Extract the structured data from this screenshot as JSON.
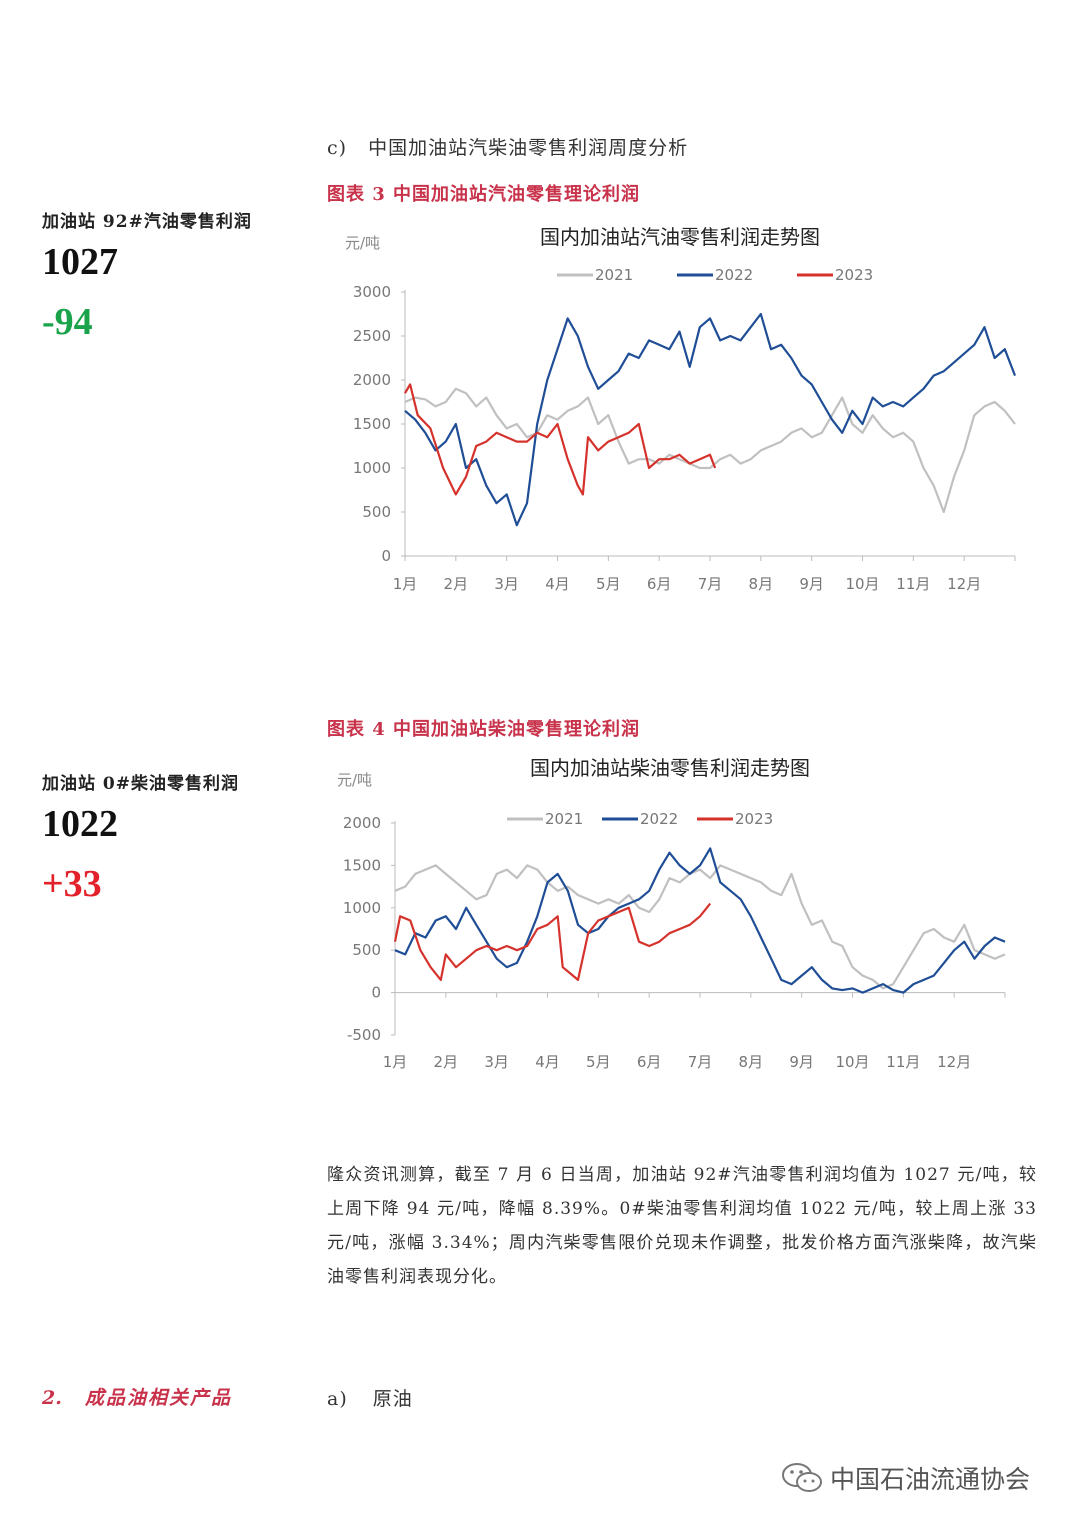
{
  "section_c": {
    "label": "c)",
    "title": "中国加油站汽柴油零售利润周度分析"
  },
  "gasoline": {
    "caption": "图表 3 中国加油站汽油零售理论利润",
    "metric_label": "加油站 92#汽油零售利润",
    "metric_value": "1027",
    "metric_change": "-94",
    "change_color": "#1aa34a"
  },
  "diesel": {
    "caption": "图表 4 中国加油站柴油零售理论利润",
    "metric_label": "加油站 0#柴油零售利润",
    "metric_value": "1022",
    "metric_change": "+33",
    "change_color": "#e3212a"
  },
  "paragraph": "隆众资讯测算，截至 7 月 6 日当周，加油站 92#汽油零售利润均值为 1027 元/吨，较上周下降 94 元/吨，降幅 8.39%。0#柴油零售利润均值 1022 元/吨，较上周上涨 33 元/吨，涨幅 3.34%；周内汽柴零售限价兑现未作调整，批发价格方面汽涨柴降，故汽柴油零售利润表现分化。",
  "section_2": {
    "number": "2.",
    "title": "成品油相关产品",
    "sub_label": "a)",
    "sub_title": "原油"
  },
  "watermark": "中国石油流通协会",
  "chart_data": [
    {
      "type": "line",
      "title": "国内加油站汽油零售利润走势图",
      "ylabel": "元/吨",
      "ylim": [
        0,
        3000
      ],
      "yticks": [
        0,
        500,
        1000,
        1500,
        2000,
        2500,
        3000
      ],
      "months": [
        "1月",
        "2月",
        "3月",
        "4月",
        "5月",
        "6月",
        "7月",
        "8月",
        "9月",
        "10月",
        "11月",
        "12月"
      ],
      "legend_position": "top",
      "grid": false,
      "series": [
        {
          "name": "2021",
          "color": "#c0c0c0",
          "x": [
            0.0,
            0.2,
            0.4,
            0.6,
            0.8,
            1.0,
            1.2,
            1.4,
            1.6,
            1.8,
            2.0,
            2.2,
            2.4,
            2.6,
            2.8,
            3.0,
            3.2,
            3.4,
            3.6,
            3.8,
            4.0,
            4.2,
            4.4,
            4.6,
            4.8,
            5.0,
            5.2,
            5.4,
            5.6,
            5.8,
            6.0,
            6.2,
            6.4,
            6.6,
            6.8,
            7.0,
            7.2,
            7.4,
            7.6,
            7.8,
            8.0,
            8.2,
            8.4,
            8.6,
            8.8,
            9.0,
            9.2,
            9.4,
            9.6,
            9.8,
            10.0,
            10.2,
            10.4,
            10.6,
            10.8,
            11.0,
            11.2,
            11.4,
            11.6,
            11.8,
            12.0
          ],
          "y": [
            1750,
            1800,
            1780,
            1700,
            1750,
            1900,
            1850,
            1700,
            1800,
            1600,
            1450,
            1500,
            1350,
            1400,
            1600,
            1550,
            1650,
            1700,
            1800,
            1500,
            1600,
            1300,
            1050,
            1100,
            1100,
            1050,
            1150,
            1100,
            1050,
            1000,
            1000,
            1100,
            1150,
            1050,
            1100,
            1200,
            1250,
            1300,
            1400,
            1450,
            1350,
            1400,
            1600,
            1800,
            1500,
            1400,
            1600,
            1450,
            1350,
            1400,
            1300,
            1000,
            800,
            500,
            900,
            1200,
            1600,
            1700,
            1750,
            1650,
            1500
          ]
        },
        {
          "name": "2022",
          "color": "#1f4e96",
          "x": [
            0.0,
            0.2,
            0.4,
            0.6,
            0.8,
            1.0,
            1.2,
            1.4,
            1.6,
            1.8,
            2.0,
            2.2,
            2.4,
            2.6,
            2.8,
            3.0,
            3.2,
            3.4,
            3.6,
            3.8,
            4.0,
            4.2,
            4.4,
            4.6,
            4.8,
            5.0,
            5.2,
            5.4,
            5.6,
            5.8,
            6.0,
            6.2,
            6.4,
            6.6,
            6.8,
            7.0,
            7.2,
            7.4,
            7.6,
            7.8,
            8.0,
            8.2,
            8.4,
            8.6,
            8.8,
            9.0,
            9.2,
            9.4,
            9.6,
            9.8,
            10.0,
            10.2,
            10.4,
            10.6,
            10.8,
            11.0,
            11.2,
            11.4,
            11.6,
            11.8,
            12.0
          ],
          "y": [
            1650,
            1550,
            1400,
            1200,
            1300,
            1500,
            1000,
            1100,
            800,
            600,
            700,
            350,
            600,
            1500,
            2000,
            2350,
            2700,
            2500,
            2150,
            1900,
            2000,
            2100,
            2300,
            2250,
            2450,
            2400,
            2350,
            2550,
            2150,
            2600,
            2700,
            2450,
            2500,
            2450,
            2600,
            2750,
            2350,
            2400,
            2250,
            2050,
            1950,
            1750,
            1550,
            1400,
            1650,
            1500,
            1800,
            1700,
            1750,
            1700,
            1800,
            1900,
            2050,
            2100,
            2200,
            2300,
            2400,
            2600,
            2250,
            2350,
            2050
          ]
        },
        {
          "name": "2023",
          "color": "#d6322c",
          "x": [
            0.0,
            0.1,
            0.25,
            0.5,
            0.75,
            1.0,
            1.2,
            1.4,
            1.6,
            1.8,
            2.0,
            2.2,
            2.4,
            2.6,
            2.8,
            3.0,
            3.2,
            3.4,
            3.5,
            3.6,
            3.8,
            4.0,
            4.2,
            4.4,
            4.6,
            4.8,
            5.0,
            5.2,
            5.4,
            5.6,
            5.8,
            6.0,
            6.1
          ],
          "y": [
            1850,
            1950,
            1600,
            1450,
            1000,
            700,
            900,
            1250,
            1300,
            1400,
            1350,
            1300,
            1300,
            1400,
            1350,
            1500,
            1100,
            800,
            700,
            1350,
            1200,
            1300,
            1350,
            1400,
            1500,
            1000,
            1100,
            1100,
            1150,
            1050,
            1100,
            1150,
            1000
          ]
        }
      ]
    },
    {
      "type": "line",
      "title": "国内加油站柴油零售利润走势图",
      "ylabel": "元/吨",
      "ylim": [
        -500,
        2000
      ],
      "yticks": [
        -500,
        0,
        500,
        1000,
        1500,
        2000
      ],
      "months": [
        "1月",
        "2月",
        "3月",
        "4月",
        "5月",
        "6月",
        "7月",
        "8月",
        "9月",
        "10月",
        "11月",
        "12月"
      ],
      "legend_position": "top",
      "grid": false,
      "series": [
        {
          "name": "2021",
          "color": "#c0c0c0",
          "x": [
            0.0,
            0.2,
            0.4,
            0.6,
            0.8,
            1.0,
            1.2,
            1.4,
            1.6,
            1.8,
            2.0,
            2.2,
            2.4,
            2.6,
            2.8,
            3.0,
            3.2,
            3.4,
            3.6,
            3.8,
            4.0,
            4.2,
            4.4,
            4.6,
            4.8,
            5.0,
            5.2,
            5.4,
            5.6,
            5.8,
            6.0,
            6.2,
            6.4,
            6.6,
            6.8,
            7.0,
            7.2,
            7.4,
            7.6,
            7.8,
            8.0,
            8.2,
            8.4,
            8.6,
            8.8,
            9.0,
            9.2,
            9.4,
            9.6,
            9.8,
            10.0,
            10.2,
            10.4,
            10.6,
            10.8,
            11.0,
            11.2,
            11.4,
            11.6,
            11.8,
            12.0
          ],
          "y": [
            1200,
            1250,
            1400,
            1450,
            1500,
            1400,
            1300,
            1200,
            1100,
            1150,
            1400,
            1450,
            1350,
            1500,
            1450,
            1300,
            1200,
            1250,
            1150,
            1100,
            1050,
            1100,
            1050,
            1150,
            1000,
            950,
            1100,
            1350,
            1300,
            1400,
            1450,
            1350,
            1500,
            1450,
            1400,
            1350,
            1300,
            1200,
            1150,
            1400,
            1050,
            800,
            850,
            600,
            550,
            300,
            200,
            150,
            50,
            100,
            300,
            500,
            700,
            750,
            650,
            600,
            800,
            500,
            450,
            400,
            450
          ]
        },
        {
          "name": "2022",
          "color": "#1f4e96",
          "x": [
            0.0,
            0.2,
            0.4,
            0.6,
            0.8,
            1.0,
            1.2,
            1.4,
            1.6,
            1.8,
            2.0,
            2.2,
            2.4,
            2.6,
            2.8,
            3.0,
            3.2,
            3.4,
            3.6,
            3.8,
            4.0,
            4.2,
            4.4,
            4.6,
            4.8,
            5.0,
            5.2,
            5.4,
            5.6,
            5.8,
            6.0,
            6.2,
            6.4,
            6.6,
            6.8,
            7.0,
            7.2,
            7.4,
            7.6,
            7.8,
            8.0,
            8.2,
            8.4,
            8.6,
            8.8,
            9.0,
            9.2,
            9.4,
            9.6,
            9.8,
            10.0,
            10.2,
            10.4,
            10.6,
            10.8,
            11.0,
            11.2,
            11.4,
            11.6,
            11.8,
            12.0
          ],
          "y": [
            500,
            450,
            700,
            650,
            850,
            900,
            750,
            1000,
            800,
            600,
            400,
            300,
            350,
            600,
            900,
            1300,
            1400,
            1200,
            800,
            700,
            750,
            900,
            1000,
            1050,
            1100,
            1200,
            1450,
            1650,
            1500,
            1400,
            1500,
            1700,
            1300,
            1200,
            1100,
            900,
            650,
            400,
            150,
            100,
            200,
            300,
            150,
            50,
            30,
            50,
            0,
            50,
            100,
            30,
            0,
            100,
            150,
            200,
            350,
            500,
            600,
            400,
            550,
            650,
            600
          ]
        },
        {
          "name": "2023",
          "color": "#d6322c",
          "x": [
            0.0,
            0.1,
            0.3,
            0.5,
            0.7,
            0.9,
            1.0,
            1.2,
            1.4,
            1.6,
            1.8,
            2.0,
            2.2,
            2.4,
            2.6,
            2.8,
            3.0,
            3.2,
            3.3,
            3.4,
            3.6,
            3.8,
            4.0,
            4.2,
            4.4,
            4.6,
            4.8,
            5.0,
            5.2,
            5.4,
            5.6,
            5.8,
            6.0,
            6.2
          ],
          "y": [
            600,
            900,
            850,
            500,
            300,
            150,
            450,
            300,
            400,
            500,
            550,
            500,
            550,
            500,
            550,
            750,
            800,
            900,
            300,
            250,
            150,
            700,
            850,
            900,
            950,
            1000,
            600,
            550,
            600,
            700,
            750,
            800,
            900,
            1050
          ]
        }
      ]
    }
  ]
}
